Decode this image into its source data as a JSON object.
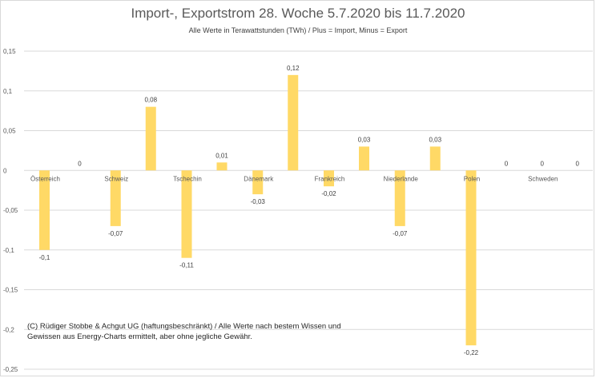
{
  "chart_data": {
    "type": "bar",
    "title": "Import-, Exportstrom 28. Woche 5.7.2020 bis 11.7.2020",
    "subtitle": "Alle Werte in Terawattstunden (TWh) / Plus = Import, Minus = Export",
    "categories": [
      "Österreich",
      "Schweiz",
      "Tschechin",
      "Dänemark",
      "Frankreich",
      "Niederlande",
      "Polen",
      "Schweden"
    ],
    "series": [
      {
        "name": "Export",
        "values": [
          -0.1,
          -0.07,
          -0.11,
          -0.03,
          -0.02,
          -0.07,
          -0.22,
          0
        ]
      },
      {
        "name": "Import",
        "values": [
          0,
          0.08,
          0.01,
          0.12,
          0.03,
          0.03,
          0,
          0
        ]
      }
    ],
    "value_labels": [
      [
        "-0,1",
        "-0,07",
        "-0,11",
        "-0,03",
        "-0,02",
        "-0,07",
        "-0,22",
        "0"
      ],
      [
        "0",
        "0,08",
        "0,01",
        "0,12",
        "0,03",
        "0,03",
        "0",
        "0"
      ]
    ],
    "y_ticks": [
      0.15,
      0.1,
      0.05,
      0,
      -0.05,
      -0.1,
      -0.15,
      -0.2,
      -0.25
    ],
    "y_tick_labels": [
      "0,15",
      "0,1",
      "0,05",
      "0",
      "-0,05",
      "-0,1",
      "-0,15",
      "-0,2",
      "-0,25"
    ],
    "ylim": [
      -0.25,
      0.15
    ],
    "xlabel": "",
    "ylabel": "",
    "grid": true,
    "bar_color": "#FFD966",
    "grid_color": "#D9D9D9"
  },
  "footnote": {
    "line1": "(C) Rüdiger Stobbe & Achgut UG (haftungsbeschränkt) / Alle Werte nach bestem Wissen und",
    "line2": "Gewissen aus Energy-Charts ermittelt, aber ohne jegliche Gewähr."
  }
}
